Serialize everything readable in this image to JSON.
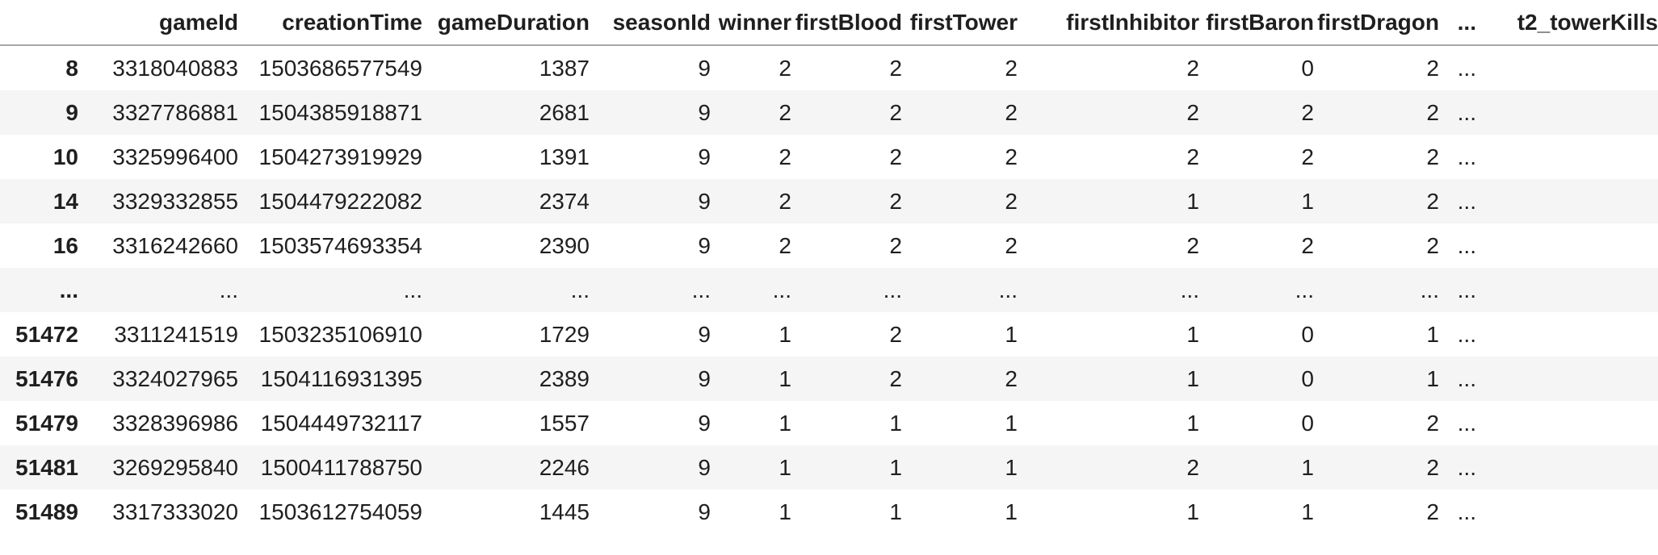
{
  "table": {
    "index_header": "",
    "columns": [
      "gameId",
      "creationTime",
      "gameDuration",
      "seasonId",
      "winner",
      "firstBlood",
      "firstTower",
      "firstInhibitor",
      "firstBaron",
      "firstDragon",
      "...",
      "t2_towerKills"
    ],
    "rows": [
      {
        "index": "8",
        "cells": [
          "3318040883",
          "1503686577549",
          "1387",
          "9",
          "2",
          "2",
          "2",
          "2",
          "0",
          "2",
          "...",
          ""
        ]
      },
      {
        "index": "9",
        "cells": [
          "3327786881",
          "1504385918871",
          "2681",
          "9",
          "2",
          "2",
          "2",
          "2",
          "2",
          "2",
          "...",
          ""
        ]
      },
      {
        "index": "10",
        "cells": [
          "3325996400",
          "1504273919929",
          "1391",
          "9",
          "2",
          "2",
          "2",
          "2",
          "2",
          "2",
          "...",
          ""
        ]
      },
      {
        "index": "14",
        "cells": [
          "3329332855",
          "1504479222082",
          "2374",
          "9",
          "2",
          "2",
          "2",
          "1",
          "1",
          "2",
          "...",
          ""
        ]
      },
      {
        "index": "16",
        "cells": [
          "3316242660",
          "1503574693354",
          "2390",
          "9",
          "2",
          "2",
          "2",
          "2",
          "2",
          "2",
          "...",
          ""
        ]
      },
      {
        "index": "...",
        "cells": [
          "...",
          "...",
          "...",
          "...",
          "...",
          "...",
          "...",
          "...",
          "...",
          "...",
          "...",
          ""
        ]
      },
      {
        "index": "51472",
        "cells": [
          "3311241519",
          "1503235106910",
          "1729",
          "9",
          "1",
          "2",
          "1",
          "1",
          "0",
          "1",
          "...",
          ""
        ]
      },
      {
        "index": "51476",
        "cells": [
          "3324027965",
          "1504116931395",
          "2389",
          "9",
          "1",
          "2",
          "2",
          "1",
          "0",
          "1",
          "...",
          ""
        ]
      },
      {
        "index": "51479",
        "cells": [
          "3328396986",
          "1504449732117",
          "1557",
          "9",
          "1",
          "1",
          "1",
          "1",
          "0",
          "2",
          "...",
          ""
        ]
      },
      {
        "index": "51481",
        "cells": [
          "3269295840",
          "1500411788750",
          "2246",
          "9",
          "1",
          "1",
          "1",
          "2",
          "1",
          "2",
          "...",
          ""
        ]
      },
      {
        "index": "51489",
        "cells": [
          "3317333020",
          "1503612754059",
          "1445",
          "9",
          "1",
          "1",
          "1",
          "1",
          "1",
          "2",
          "...",
          ""
        ]
      }
    ]
  },
  "colors": {
    "text": "#1f1f1f",
    "row_stripe": "#f5f5f5",
    "header_border": "#a9a9a9",
    "background": "#ffffff"
  }
}
